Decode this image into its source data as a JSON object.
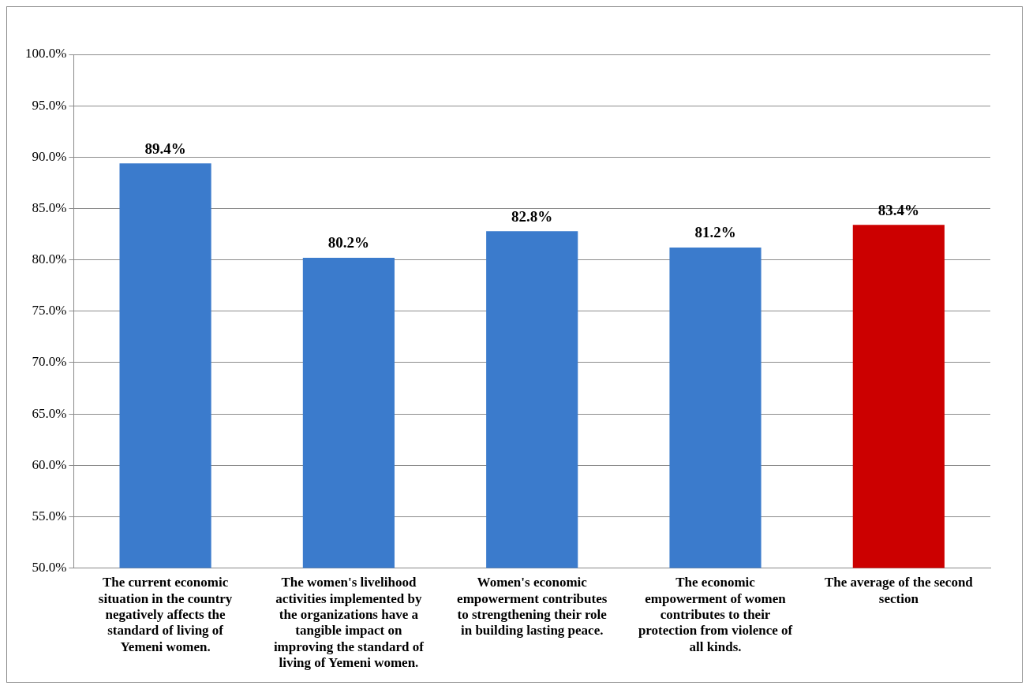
{
  "chart_data": {
    "type": "bar",
    "categories": [
      "The current economic situation in the country negatively affects the standard of living of Yemeni women.",
      "The women's livelihood activities implemented by the organizations have a tangible impact on improving the standard of living of Yemeni women.",
      "Women's economic empowerment contributes to strengthening their role in building lasting peace.",
      "The economic empowerment of women contributes to their protection from violence of all kinds.",
      "The average of the second section"
    ],
    "values": [
      89.4,
      80.2,
      82.8,
      81.2,
      83.4
    ],
    "colors": [
      "#3b7bcc",
      "#3b7bcc",
      "#3b7bcc",
      "#3b7bcc",
      "#cc0000"
    ],
    "value_labels": [
      "89.4%",
      "80.2%",
      "82.8%",
      "81.2%",
      "83.4%"
    ],
    "ylim": [
      50,
      100
    ],
    "yticks": [
      {
        "value": 50,
        "label": "50.0%"
      },
      {
        "value": 55,
        "label": "55.0%"
      },
      {
        "value": 60,
        "label": "60.0%"
      },
      {
        "value": 65,
        "label": "65.0%"
      },
      {
        "value": 70,
        "label": "70.0%"
      },
      {
        "value": 75,
        "label": "75.0%"
      },
      {
        "value": 80,
        "label": "80.0%"
      },
      {
        "value": 85,
        "label": "85.0%"
      },
      {
        "value": 90,
        "label": "90.0%"
      },
      {
        "value": 95,
        "label": "95.0%"
      },
      {
        "value": 100,
        "label": "100.0%"
      }
    ],
    "grid": "y",
    "legend": false
  }
}
